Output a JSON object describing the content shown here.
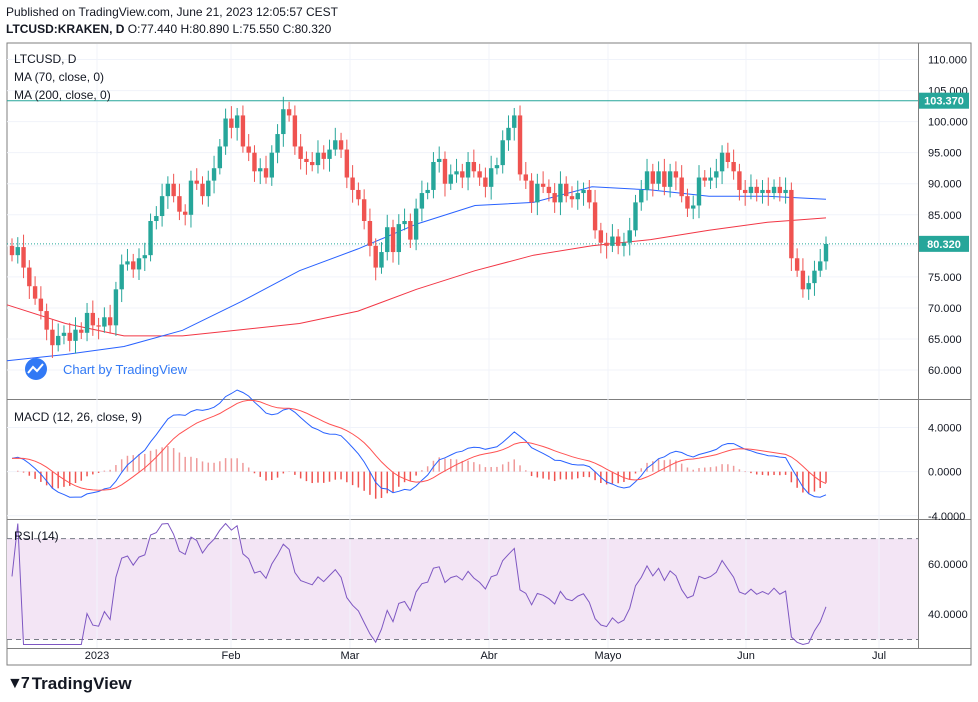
{
  "header": {
    "published": "Published on TradingView.com, June 21, 2023 12:05:57 CEST",
    "symbol_line": "LTCUSD:KRAKEN, D",
    "ohlc": "O:77.440 H:80.890 L:75.550 C:80.320"
  },
  "legend": {
    "symbol": "LTCUSD, D",
    "ma70": "MA (70, close, 0)",
    "ma200": "MA (200, close, 0)",
    "macd": "MACD (12, 26, close, 9)",
    "rsi": "RSI (14)"
  },
  "watermark": "Chart by TradingView",
  "footer": "TradingView",
  "colors": {
    "up": "#26a69a",
    "down": "#ef5350",
    "ma70": "#2962ff",
    "ma200": "#f23645",
    "macd": "#2962ff",
    "signal": "#ff5252",
    "rsi": "#7e57c2",
    "rsi_bg": "#f3e5f5"
  },
  "chart_data": {
    "type": "candlestick",
    "symbol": "LTCUSD",
    "interval": "D",
    "price_axis": {
      "range": [
        55.5,
        112.5
      ],
      "ticks": [
        "110.000",
        "105.000",
        "100.000",
        "95.000",
        "90.000",
        "85.000",
        "80.000",
        "75.000",
        "70.000",
        "65.000",
        "60.000"
      ]
    },
    "price_labels": [
      {
        "value": 103.37,
        "text": "103.370",
        "color": "#26a69a"
      },
      {
        "value": 80.32,
        "text": "80.320",
        "color": "#26a69a"
      }
    ],
    "x_labels": [
      "2023",
      "Feb",
      "Mar",
      "Abr",
      "Mayo",
      "Jun",
      "Jul"
    ],
    "candles_close_stepped": [
      78.5,
      79.8,
      76.5,
      73.5,
      71.5,
      69.5,
      66.5,
      64.0,
      65.5,
      66.0,
      64.7,
      66.5,
      66.0,
      69.2,
      67.2,
      67.0,
      68.5,
      67.2,
      73.0,
      77.0,
      77.5,
      76.2,
      78.0,
      78.5,
      84.0,
      84.8,
      88.0,
      90.0,
      88.0,
      85.5,
      85.0,
      90.5,
      90.0,
      88.0,
      90.5,
      92.5,
      96.0,
      100.5,
      99.0,
      101.0,
      96.0,
      95.0,
      92.0,
      92.5,
      91.0,
      95.0,
      98.0,
      102.0,
      101.0,
      96.0,
      94.0,
      93.5,
      93.0,
      95.0,
      94.0,
      95.5,
      97.0,
      95.5,
      91.0,
      89.0,
      87.5,
      84.0,
      80.0,
      76.5,
      79.0,
      83.0,
      79.0,
      83.5,
      84.0,
      81.0,
      86.0,
      88.5,
      89.0,
      93.5,
      94.0,
      90.0,
      91.5,
      92.0,
      91.0,
      93.5,
      92.0,
      91.0,
      89.5,
      92.5,
      93.0,
      97.0,
      99.0,
      101.0,
      91.5,
      90.5,
      87.0,
      90.0,
      89.5,
      88.5,
      87.0,
      90.0,
      88.0,
      87.5,
      88.5,
      89.0,
      87.0,
      82.5,
      80.5,
      80.0,
      81.5,
      80.0,
      80.5,
      82.5,
      87.0,
      89.0,
      92.0,
      90.0,
      92.0,
      89.5,
      92.0,
      91.0,
      88.0,
      86.0,
      86.5,
      91.0,
      90.5,
      91.0,
      92.0,
      95.0,
      93.5,
      92.0,
      89.0,
      88.5,
      89.5,
      88.5,
      89.0,
      88.5,
      89.5,
      88.5,
      89.0,
      78.0,
      76.0,
      73.0,
      74.0,
      76.0,
      77.5,
      80.3
    ],
    "ma70": [
      61.5,
      62.5,
      63.8,
      66.4,
      71.0,
      76.0,
      79.5,
      83.5,
      86.5,
      87.0,
      89.5,
      89.0,
      88.0,
      88.0,
      87.5
    ],
    "ma200": [
      70.5,
      67.5,
      65.5,
      65.5,
      66.5,
      67.5,
      69.5,
      73.0,
      76.0,
      78.5,
      80.0,
      81.0,
      82.5,
      83.8,
      84.5
    ],
    "macd": {
      "range": [
        -4.2,
        6.4
      ],
      "ticks": [
        "4.0000",
        "0.0000",
        "-4.0000"
      ]
    },
    "rsi": {
      "range": [
        27,
        77
      ],
      "ticks": [
        "60.0000",
        "40.0000"
      ],
      "bands": [
        30,
        70
      ]
    }
  }
}
